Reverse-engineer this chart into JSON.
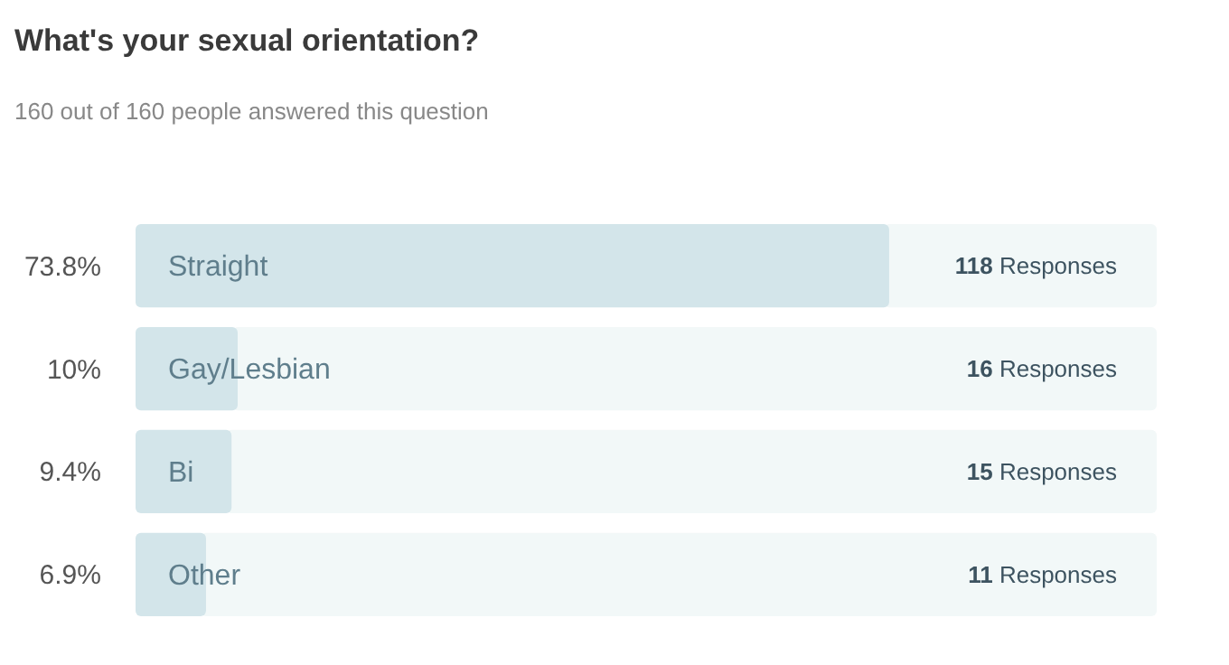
{
  "chart_data": {
    "type": "bar",
    "orientation": "horizontal",
    "title": "What's your sexual orientation?",
    "subtitle": "160 out of 160 people answered this question",
    "categories": [
      "Straight",
      "Gay/Lesbian",
      "Bi",
      "Other"
    ],
    "values": [
      73.8,
      10,
      9.4,
      6.9
    ],
    "value_labels": [
      "73.8%",
      "10%",
      "9.4%",
      "6.9%"
    ],
    "color": "#d3e5ea",
    "xlim": [
      0,
      100
    ],
    "annotations": [
      "118 Responses",
      "16 Responses",
      "15 Responses",
      "11 Responses"
    ]
  }
}
